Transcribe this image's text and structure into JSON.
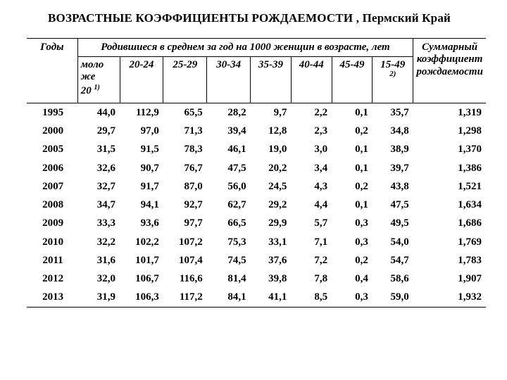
{
  "title": "ВОЗРАСТНЫЕ КОЭФФИЦИЕНТЫ РОЖДАЕМОСТИ , Пермский Край",
  "header": {
    "years": "Годы",
    "span": "Родившиеся в среднем за год на 1000 женщин в возрасте, лет",
    "summary": "Суммарный коэффициент рождаемости",
    "cols": {
      "c0a": "моло",
      "c0b": "же",
      "c0c": "20 ",
      "c0sup": "1)",
      "c1": "20-24",
      "c2": "25-29",
      "c3": "30-34",
      "c4": "35-39",
      "c5": "40-44",
      "c6": "45-49",
      "c7": "15-49",
      "c7sup": "2)"
    }
  },
  "rows": [
    {
      "y": "1995",
      "v": [
        "44,0",
        "112,9",
        "65,5",
        "28,2",
        "9,7",
        "2,2",
        "0,1",
        "35,7",
        "1,319"
      ]
    },
    {
      "y": "2000",
      "v": [
        "29,7",
        "97,0",
        "71,3",
        "39,4",
        "12,8",
        "2,3",
        "0,2",
        "34,8",
        "1,298"
      ]
    },
    {
      "y": "2005",
      "v": [
        "31,5",
        "91,5",
        "78,3",
        "46,1",
        "19,0",
        "3,0",
        "0,1",
        "38,9",
        "1,370"
      ]
    },
    {
      "y": "2006",
      "v": [
        "32,6",
        "90,7",
        "76,7",
        "47,5",
        "20,2",
        "3,4",
        "0,1",
        "39,7",
        "1,386"
      ]
    },
    {
      "y": "2007",
      "v": [
        "32,7",
        "91,7",
        "87,0",
        "56,0",
        "24,5",
        "4,3",
        "0,2",
        "43,8",
        "1,521"
      ]
    },
    {
      "y": "2008",
      "v": [
        "34,7",
        "94,1",
        "92,7",
        "62,7",
        "29,2",
        "4,4",
        "0,1",
        "47,5",
        "1,634"
      ]
    },
    {
      "y": "2009",
      "v": [
        "33,3",
        "93,6",
        "97,7",
        "66,5",
        "29,9",
        "5,7",
        "0,3",
        "49,5",
        "1,686"
      ]
    },
    {
      "y": "2010",
      "v": [
        "32,2",
        "102,2",
        "107,2",
        "75,3",
        "33,1",
        "7,1",
        "0,3",
        "54,0",
        "1,769"
      ]
    },
    {
      "y": "2011",
      "v": [
        "31,6",
        "101,7",
        "107,4",
        "74,5",
        "37,6",
        "7,2",
        "0,2",
        "54,7",
        "1,783"
      ]
    },
    {
      "y": "2012",
      "v": [
        "32,0",
        "106,7",
        "116,6",
        "81,4",
        "39,8",
        "7,8",
        "0,4",
        "58,6",
        "1,907"
      ]
    },
    {
      "y": "2013",
      "v": [
        "31,9",
        "106,3",
        "117,2",
        "84,1",
        "41,1",
        "8,5",
        "0,3",
        "59,0",
        "1,932"
      ]
    }
  ]
}
